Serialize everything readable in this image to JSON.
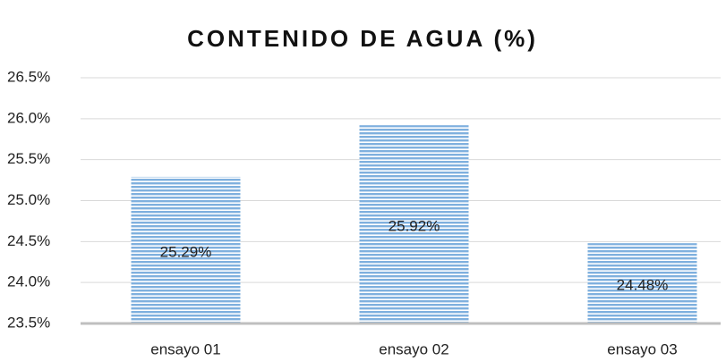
{
  "chart_data": {
    "type": "bar",
    "title": "CONTENIDO DE AGUA (%)",
    "categories": [
      "ensayo 01",
      "ensayo 02",
      "ensayo 03"
    ],
    "values": [
      25.29,
      25.92,
      24.48
    ],
    "value_labels": [
      "25.29%",
      "25.92%",
      "24.48%"
    ],
    "color": "#9dc3e6",
    "ylim": [
      23.5,
      26.5
    ],
    "yticks": [
      {
        "value": 23.5,
        "label": "23.5%"
      },
      {
        "value": 24.0,
        "label": "24.0%"
      },
      {
        "value": 24.5,
        "label": "24.5%"
      },
      {
        "value": 25.0,
        "label": "25.0%"
      },
      {
        "value": 25.5,
        "label": "25.5%"
      },
      {
        "value": 26.0,
        "label": "26.0%"
      },
      {
        "value": 26.5,
        "label": "26.5%"
      }
    ],
    "grid": true
  }
}
